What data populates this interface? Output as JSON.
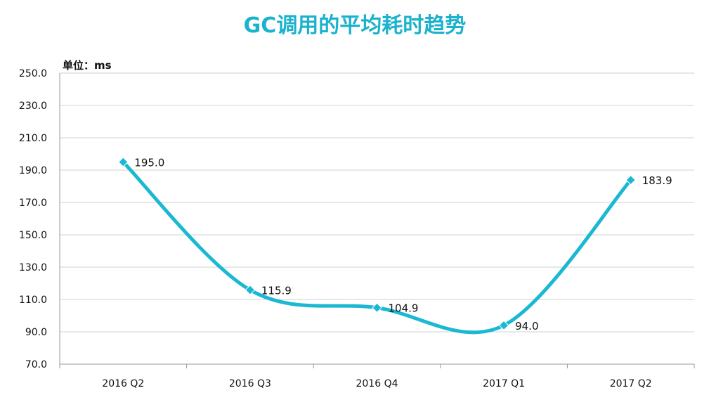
{
  "chart_data": {
    "type": "line",
    "title": "GC调用的平均耗时趋势",
    "unit_label": "单位：ms",
    "categories": [
      "2016 Q2",
      "2016 Q3",
      "2016 Q4",
      "2017 Q1",
      "2017 Q2"
    ],
    "series": [
      {
        "values": [
          195.0,
          115.9,
          104.9,
          94.0,
          183.9
        ]
      }
    ],
    "data_labels": [
      "195.0",
      "115.9",
      "104.9",
      "94.0",
      "183.9"
    ],
    "y_ticks": [
      "70.0",
      "90.0",
      "110.0",
      "130.0",
      "150.0",
      "170.0",
      "190.0",
      "210.0",
      "230.0",
      "250.0"
    ],
    "ylim": [
      70,
      250
    ],
    "smooth": true,
    "grid": true,
    "legend": "none",
    "colors": {
      "title": "#1ab2cc",
      "series": "#1ab8d2",
      "marker": "#1ab8d2"
    }
  }
}
